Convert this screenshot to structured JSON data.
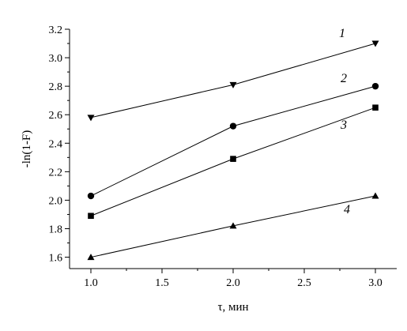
{
  "chart_data": {
    "type": "line",
    "title": "",
    "xlabel": "τ, мин",
    "ylabel": "-ln(1-F)",
    "xlim": [
      0.85,
      3.15
    ],
    "ylim": [
      1.52,
      3.2
    ],
    "x_ticks": [
      "1.0",
      "1.5",
      "2.0",
      "2.5",
      "3.0"
    ],
    "y_ticks": [
      "1.6",
      "1.8",
      "2.0",
      "2.2",
      "2.4",
      "2.6",
      "2.8",
      "3.0",
      "3.2"
    ],
    "grid": false,
    "legend": "none",
    "series": [
      {
        "name": "1",
        "marker": "triangle-down",
        "x": [
          1.0,
          2.0,
          3.0
        ],
        "y": [
          2.58,
          2.81,
          3.1
        ]
      },
      {
        "name": "2",
        "marker": "circle",
        "x": [
          1.0,
          2.0,
          3.0
        ],
        "y": [
          2.03,
          2.52,
          2.8
        ]
      },
      {
        "name": "3",
        "marker": "square",
        "x": [
          1.0,
          2.0,
          3.0
        ],
        "y": [
          1.89,
          2.29,
          2.65
        ]
      },
      {
        "name": "4",
        "marker": "triangle-up",
        "x": [
          1.0,
          2.0,
          3.0
        ],
        "y": [
          1.6,
          1.82,
          2.03
        ]
      }
    ]
  }
}
